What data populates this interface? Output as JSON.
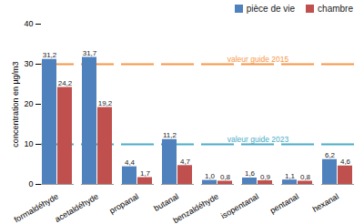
{
  "chart_data": {
    "type": "bar",
    "y_label": "concentration en µg/m3",
    "categories": [
      "formaldéhyde",
      "acetaldéhyde",
      "propanal",
      "butanal",
      "benzaldéhyde",
      "isopentanal",
      "pentanal",
      "hexanal"
    ],
    "series": [
      {
        "name": "pièce de vie",
        "color": "#4f81bd",
        "values": [
          31.2,
          31.7,
          4.4,
          11.2,
          1.0,
          1.6,
          1.1,
          6.2
        ],
        "value_labels": [
          "31,2",
          "31,7",
          "4,4",
          "11,2",
          "1,0",
          "1,6",
          "1,1",
          "6,2"
        ]
      },
      {
        "name": "chambre",
        "color": "#c0504d",
        "values": [
          24.2,
          19.2,
          1.7,
          4.7,
          0.8,
          0.9,
          0.8,
          4.6
        ],
        "value_labels": [
          "24,2",
          "19,2",
          "1,7",
          "4,7",
          "0,8",
          "0,9",
          "0,8",
          "4,6"
        ]
      }
    ],
    "annotations": [
      {
        "text": "valeur guide 2015",
        "y": 30,
        "color": "#f79646"
      },
      {
        "text": "valeur guide 2023",
        "y": 10,
        "color": "#4bacc6"
      }
    ],
    "ylim": [
      0,
      40
    ],
    "yticks": [
      0,
      10,
      20,
      30,
      40
    ],
    "grid": false,
    "legend": "top-right",
    "data_labels": true
  }
}
